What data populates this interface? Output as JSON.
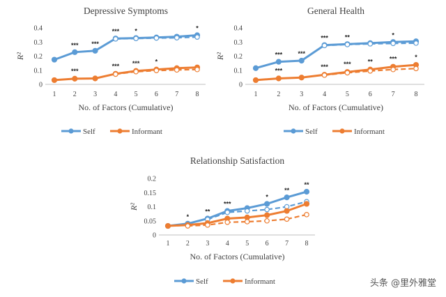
{
  "colors": {
    "self": "#5b9bd5",
    "informant": "#ed7d31",
    "axis": "#bfbfbf"
  },
  "watermark": "头条 @里外雅堂",
  "chart_data": [
    {
      "type": "line",
      "title": "Depressive Symptoms",
      "xlabel": "No. of Factors (Cumulative)",
      "ylabel": "R²",
      "categories": [
        "1",
        "2",
        "3",
        "4",
        "5",
        "6",
        "7",
        "8"
      ],
      "ylim": [
        0,
        0.4
      ],
      "yticks": [
        "0",
        "0.1",
        "0.2",
        "0.3",
        "0.4"
      ],
      "grid": false,
      "legend": "bottom",
      "series": [
        {
          "name": "Self",
          "style": "solid",
          "values": [
            0.175,
            0.228,
            0.238,
            0.325,
            0.328,
            0.332,
            0.338,
            0.348
          ]
        },
        {
          "name": "Self",
          "style": "dashed",
          "values": [
            null,
            null,
            null,
            0.322,
            0.325,
            0.328,
            0.33,
            0.335
          ]
        },
        {
          "name": "Informant",
          "style": "solid",
          "values": [
            0.03,
            0.04,
            0.042,
            0.075,
            0.095,
            0.105,
            0.115,
            0.12
          ]
        },
        {
          "name": "Informant",
          "style": "dashed",
          "values": [
            null,
            null,
            null,
            0.072,
            0.09,
            0.098,
            0.102,
            0.105
          ]
        }
      ],
      "stars_self": [
        "",
        "***",
        "***",
        "***",
        "*",
        "",
        "",
        "*"
      ],
      "stars_informant": [
        "",
        "***",
        "",
        "***",
        "***",
        "*",
        "",
        ""
      ]
    },
    {
      "type": "line",
      "title": "General Health",
      "xlabel": "No. of Factors (Cumulative)",
      "ylabel": "R²",
      "categories": [
        "1",
        "2",
        "3",
        "4",
        "5",
        "6",
        "7",
        "8"
      ],
      "ylim": [
        0,
        0.4
      ],
      "yticks": [
        "0",
        "0.1",
        "0.2",
        "0.3",
        "0.4"
      ],
      "grid": false,
      "legend": "bottom",
      "series": [
        {
          "name": "Self",
          "style": "solid",
          "values": [
            0.115,
            0.16,
            0.168,
            0.278,
            0.285,
            0.292,
            0.3,
            0.305
          ]
        },
        {
          "name": "Self",
          "style": "dashed",
          "values": [
            null,
            null,
            null,
            0.275,
            0.282,
            0.287,
            0.29,
            0.292
          ]
        },
        {
          "name": "Informant",
          "style": "solid",
          "values": [
            0.03,
            0.042,
            0.048,
            0.068,
            0.088,
            0.105,
            0.125,
            0.138
          ]
        },
        {
          "name": "Informant",
          "style": "dashed",
          "values": [
            null,
            null,
            null,
            0.065,
            0.082,
            0.095,
            0.105,
            0.112
          ]
        }
      ],
      "stars_self": [
        "",
        "***",
        "***",
        "***",
        "**",
        "",
        "*",
        ""
      ],
      "stars_informant": [
        "",
        "***",
        "",
        "***",
        "***",
        "**",
        "***",
        "*"
      ]
    },
    {
      "type": "line",
      "title": "Relationship Satisfaction",
      "xlabel": "No. of Factors (Cumulative)",
      "ylabel": "R²",
      "categories": [
        "1",
        "2",
        "3",
        "4",
        "5",
        "6",
        "7",
        "8"
      ],
      "ylim": [
        0,
        0.2
      ],
      "yticks": [
        "0",
        "0.05",
        "0.1",
        "0.15",
        "0.2"
      ],
      "grid": false,
      "legend": "bottom",
      "series": [
        {
          "name": "Self",
          "style": "solid",
          "values": [
            0.032,
            0.04,
            0.058,
            0.085,
            0.095,
            0.11,
            0.133,
            0.153
          ]
        },
        {
          "name": "Self",
          "style": "dashed",
          "values": [
            null,
            null,
            0.055,
            0.08,
            0.085,
            0.09,
            0.1,
            0.118
          ]
        },
        {
          "name": "Informant",
          "style": "solid",
          "values": [
            0.032,
            0.035,
            0.042,
            0.058,
            0.062,
            0.07,
            0.085,
            0.11
          ]
        },
        {
          "name": "Informant",
          "style": "dashed",
          "values": [
            null,
            0.032,
            0.035,
            0.045,
            0.047,
            0.05,
            0.056,
            0.072
          ]
        }
      ],
      "stars_self": [
        "",
        "*",
        "**",
        "***",
        "",
        "*",
        "**",
        "**"
      ],
      "stars_informant": [
        "",
        "",
        "",
        "",
        "",
        "",
        "",
        ""
      ]
    }
  ]
}
